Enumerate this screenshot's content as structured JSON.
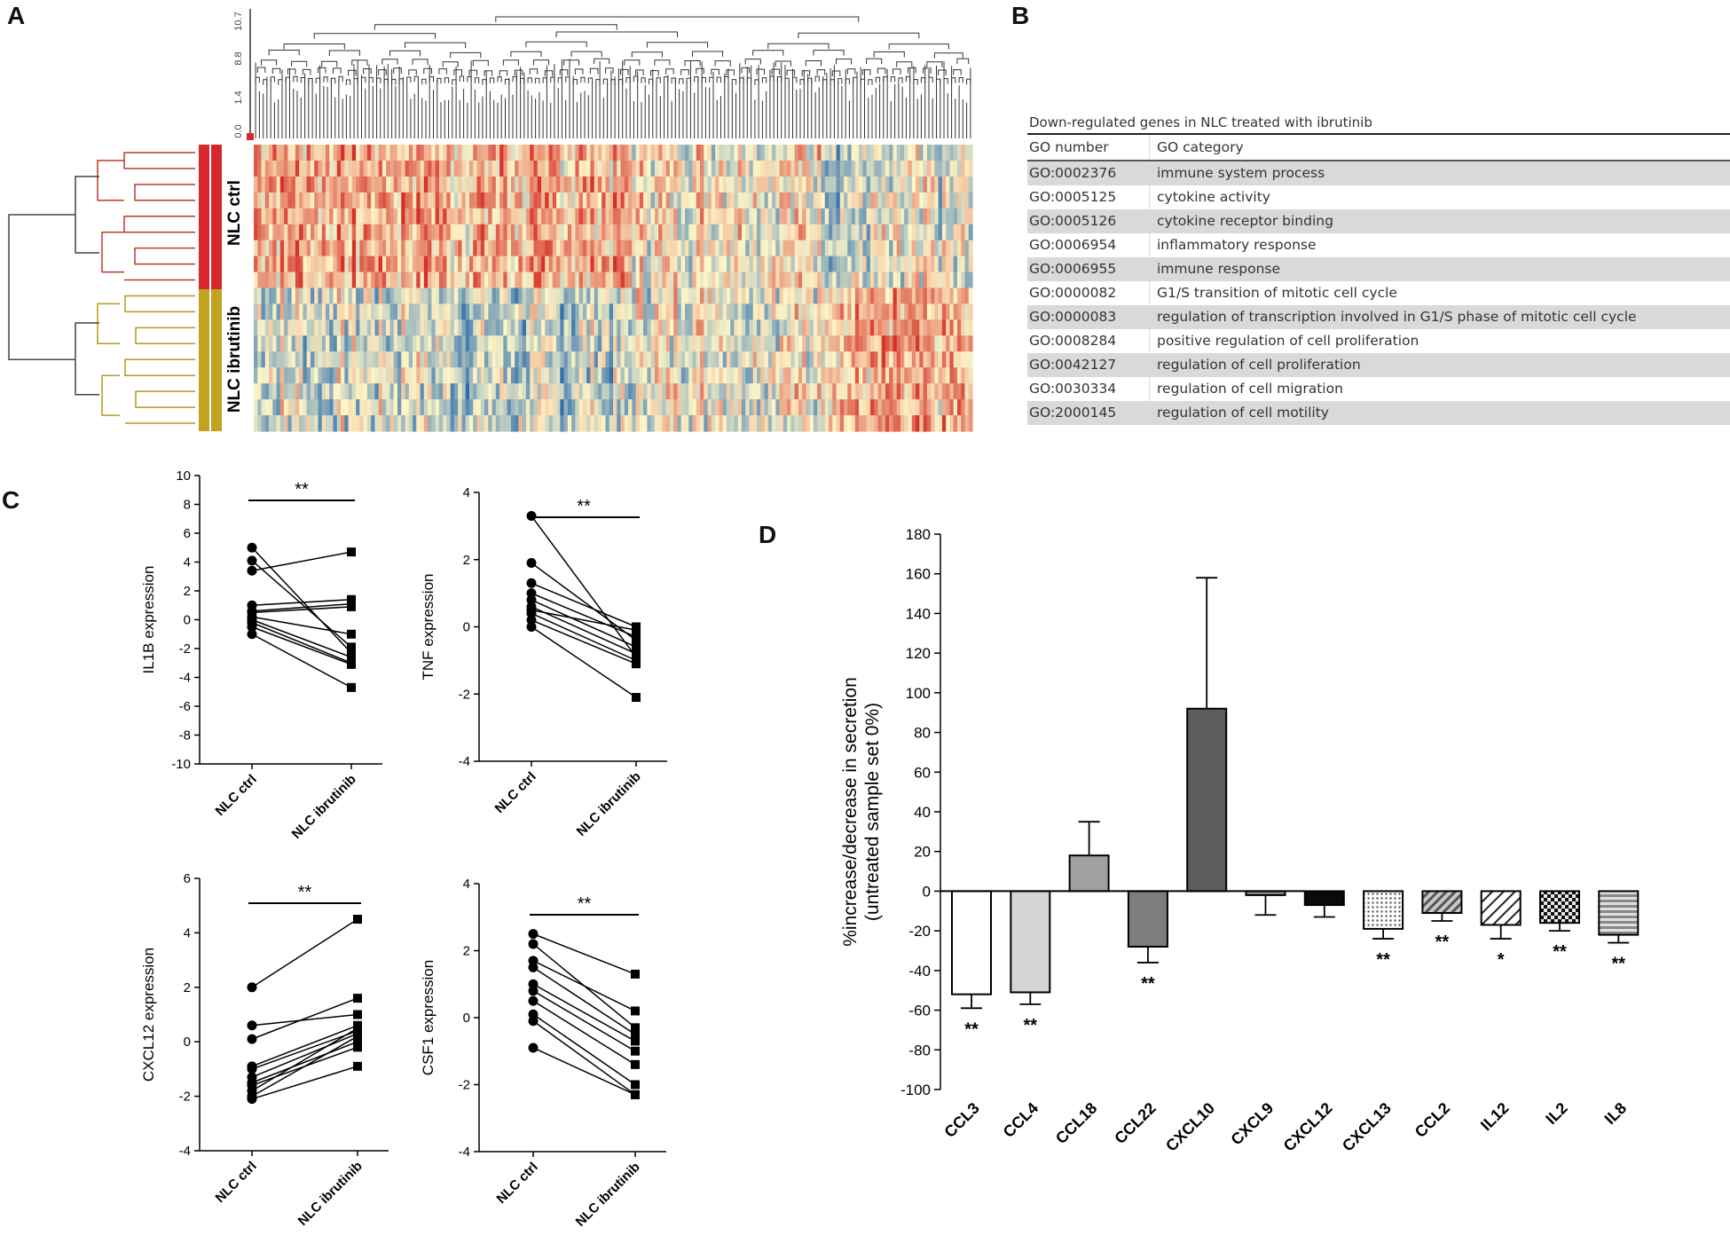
{
  "panels": {
    "A": "A",
    "B": "B",
    "C": "C",
    "D": "D"
  },
  "heatmap": {
    "row_groups": [
      "NLC ctrl",
      "NLC ibrutinib"
    ],
    "group_colors": [
      "#d9262c",
      "#c2a320"
    ],
    "dendro_ticks": [
      "0.0",
      "1.4",
      "8.8",
      "10.7"
    ]
  },
  "go_table": {
    "title": "Down-regulated genes in NLC treated with ibrutinib",
    "headers": [
      "GO number",
      "GO category"
    ],
    "rows": [
      {
        "go": "GO:0002376",
        "category": "immune system process"
      },
      {
        "go": "GO:0005125",
        "category": "cytokine activity"
      },
      {
        "go": "GO:0005126",
        "category": "cytokine receptor binding"
      },
      {
        "go": "GO:0006954",
        "category": "inflammatory response"
      },
      {
        "go": "GO:0006955",
        "category": "immune response"
      },
      {
        "go": "GO:0000082",
        "category": "G1/S transition of mitotic cell cycle"
      },
      {
        "go": "GO:0000083",
        "category": "regulation of transcription involved in G1/S phase of mitotic cell cycle"
      },
      {
        "go": "GO:0008284",
        "category": "positive regulation of cell proliferation"
      },
      {
        "go": "GO:0042127",
        "category": "regulation of cell proliferation"
      },
      {
        "go": "GO:0030334",
        "category": "regulation of cell migration"
      },
      {
        "go": "GO:2000145",
        "category": "regulation of cell motility"
      }
    ]
  },
  "chart_data": [
    {
      "type": "line",
      "id": "IL1B",
      "ylabel": "IL1B expression",
      "categories": [
        "NLC ctrl",
        "NLC ibrutinib"
      ],
      "ylim": [
        -10,
        10
      ],
      "yticks": [
        -10,
        -8,
        -6,
        -4,
        -2,
        0,
        2,
        4,
        6,
        8,
        10
      ],
      "significance": "**",
      "pairs": [
        [
          5.0,
          -2.3
        ],
        [
          4.1,
          -1.9
        ],
        [
          3.4,
          4.7
        ],
        [
          1.0,
          1.4
        ],
        [
          0.6,
          1.1
        ],
        [
          0.5,
          0.9
        ],
        [
          0.2,
          -1.0
        ],
        [
          0.0,
          -2.6
        ],
        [
          -0.2,
          -3.0
        ],
        [
          -0.5,
          -3.1
        ],
        [
          -1.0,
          -4.7
        ]
      ]
    },
    {
      "type": "line",
      "id": "TNF",
      "ylabel": "TNF expression",
      "categories": [
        "NLC ctrl",
        "NLC ibrutinib"
      ],
      "ylim": [
        -4,
        4
      ],
      "yticks": [
        -4,
        -2,
        0,
        2,
        4
      ],
      "significance": "**",
      "pairs": [
        [
          3.3,
          -0.9
        ],
        [
          1.9,
          -0.4
        ],
        [
          1.3,
          0.0
        ],
        [
          1.0,
          -0.3
        ],
        [
          0.8,
          -0.6
        ],
        [
          0.6,
          -0.8
        ],
        [
          0.5,
          -0.1
        ],
        [
          0.4,
          -1.0
        ],
        [
          0.2,
          -1.1
        ],
        [
          0.0,
          -2.1
        ]
      ]
    },
    {
      "type": "line",
      "id": "CXCL12",
      "ylabel": "CXCL12 expression",
      "categories": [
        "NLC ctrl",
        "NLC ibrutinib"
      ],
      "ylim": [
        -4,
        6
      ],
      "yticks": [
        -4,
        -2,
        0,
        2,
        4,
        6
      ],
      "significance": "**",
      "pairs": [
        [
          2.0,
          4.5
        ],
        [
          0.6,
          1.0
        ],
        [
          0.1,
          1.6
        ],
        [
          -0.9,
          0.6
        ],
        [
          -1.0,
          0.4
        ],
        [
          -1.3,
          0.3
        ],
        [
          -1.5,
          0.0
        ],
        [
          -1.6,
          -0.2
        ],
        [
          -1.8,
          0.5
        ],
        [
          -2.0,
          0.2
        ],
        [
          -2.1,
          -0.9
        ]
      ]
    },
    {
      "type": "line",
      "id": "CSF1",
      "ylabel": "CSF1 expression",
      "categories": [
        "NLC ctrl",
        "NLC ibrutinib"
      ],
      "ylim": [
        -4,
        4
      ],
      "yticks": [
        -4,
        -2,
        0,
        2,
        4
      ],
      "significance": "**",
      "pairs": [
        [
          2.5,
          1.3
        ],
        [
          2.2,
          -0.3
        ],
        [
          1.7,
          0.2
        ],
        [
          1.5,
          -0.5
        ],
        [
          1.0,
          -0.7
        ],
        [
          0.8,
          -1.0
        ],
        [
          0.5,
          -1.4
        ],
        [
          0.1,
          -2.0
        ],
        [
          -0.1,
          -2.3
        ],
        [
          -0.9,
          -2.3
        ]
      ]
    },
    {
      "type": "bar",
      "id": "secretion",
      "ylabel": "%increase/decrease in secretion",
      "ylabel2": "(untreated sample set 0%)",
      "ylim": [
        -100,
        180
      ],
      "yticks": [
        -100,
        -80,
        -60,
        -40,
        -20,
        0,
        20,
        40,
        60,
        80,
        100,
        120,
        140,
        160,
        180
      ],
      "categories": [
        "CCL3",
        "CCL4",
        "CCL18",
        "CCL22",
        "CXCL10",
        "CXCL9",
        "CXCL12",
        "CXCL13",
        "CCL2",
        "IL12",
        "IL2",
        "IL8"
      ],
      "values": [
        -52,
        -51,
        18,
        -28,
        92,
        -2,
        -7,
        -19,
        -11,
        -17,
        -16,
        -22
      ],
      "errors": [
        7,
        6,
        17,
        8,
        66,
        10,
        6,
        5,
        4,
        7,
        4,
        4
      ],
      "significance": [
        "**",
        "**",
        "",
        "**",
        "",
        "",
        "",
        "**",
        "**",
        "*",
        "**",
        "**"
      ],
      "fills": [
        "white",
        "#d4d4d4",
        "#a0a0a0",
        "#7d7d7d",
        "#5c5c5c",
        "#8a8a8a",
        "#0a0a0a",
        "dots",
        "diag-dark",
        "diag-light",
        "checker",
        "hstripes"
      ]
    }
  ]
}
